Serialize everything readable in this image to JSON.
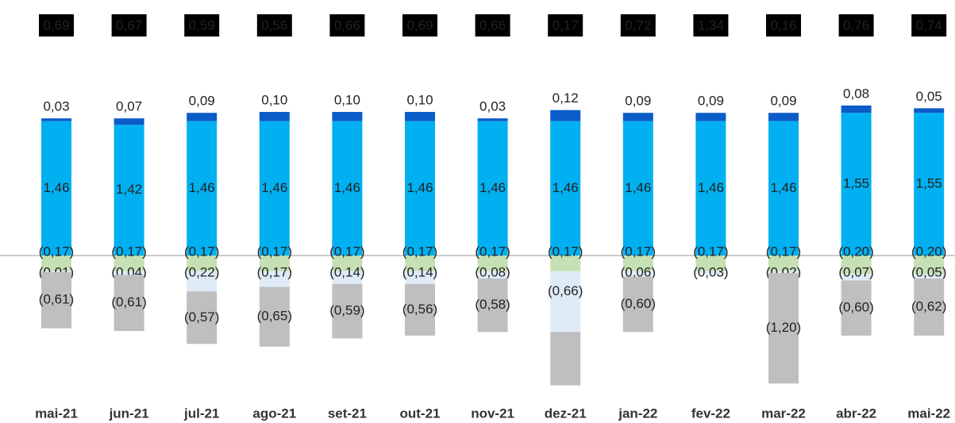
{
  "chart_data": {
    "type": "stacked-bar",
    "categories": [
      "mai-21",
      "jun-21",
      "jul-21",
      "ago-21",
      "set-21",
      "out-21",
      "nov-21",
      "dez-21",
      "jan-22",
      "fev-22",
      "mar-22",
      "abr-22",
      "mai-22"
    ],
    "series": [
      {
        "color": "#00b0f0",
        "values": [
          1.46,
          1.42,
          1.46,
          1.46,
          1.46,
          1.46,
          1.46,
          1.46,
          1.46,
          1.46,
          1.46,
          1.55,
          1.55
        ],
        "value_labels": [
          "1,46",
          "1,42",
          "1,46",
          "1,46",
          "1,46",
          "1,46",
          "1,46",
          "1,46",
          "1,46",
          "1,46",
          "1,46",
          "1,55",
          "1,55"
        ]
      },
      {
        "color": "#0b5cc8",
        "values": [
          0.03,
          0.07,
          0.09,
          0.1,
          0.1,
          0.1,
          0.03,
          0.12,
          0.09,
          0.09,
          0.09,
          0.08,
          0.05
        ],
        "value_labels": [
          "0,03",
          "0,07",
          "0,09",
          "0,10",
          "0,10",
          "0,10",
          "0,03",
          "0,12",
          "0,09",
          "0,09",
          "0,09",
          "0,08",
          "0,05"
        ]
      },
      {
        "color": "#c5e0b4",
        "values": [
          -0.17,
          -0.17,
          -0.17,
          -0.17,
          -0.17,
          -0.17,
          -0.17,
          -0.17,
          -0.17,
          -0.17,
          -0.17,
          -0.2,
          -0.2
        ],
        "value_labels": [
          "(0,17)",
          "(0,17)",
          "(0,17)",
          "(0,17)",
          "(0,17)",
          "(0,17)",
          "(0,17)",
          "(0,17)",
          "(0,17)",
          "(0,17)",
          "(0,17)",
          "(0,20)",
          "(0,20)"
        ]
      },
      {
        "color": "#deebf7",
        "values": [
          -0.01,
          -0.04,
          -0.22,
          -0.17,
          -0.14,
          -0.14,
          -0.08,
          -0.66,
          -0.06,
          -0.03,
          -0.02,
          -0.07,
          -0.05
        ],
        "value_labels": [
          "(0,01)",
          "(0,04)",
          "(0,22)",
          "(0,17)",
          "(0,14)",
          "(0,14)",
          "(0,08)",
          "(0,66)",
          "(0,06)",
          "(0,03)",
          "(0,02)",
          "(0,07)",
          "(0,05)"
        ]
      },
      {
        "color": "#bfbfbf",
        "values": [
          -0.61,
          -0.61,
          -0.57,
          -0.65,
          -0.59,
          -0.56,
          -0.58,
          -0.58,
          -0.6,
          null,
          -1.2,
          -0.6,
          -0.62
        ],
        "value_labels": [
          "(0,61)",
          "(0,61)",
          "(0,57)",
          "(0,65)",
          "(0,59)",
          "(0,56)",
          "(0,58)",
          null,
          "(0,60)",
          null,
          "(1,20)",
          "(0,60)",
          "(0,62)"
        ]
      }
    ],
    "totals": {
      "values": [
        0.69,
        0.67,
        0.59,
        0.56,
        0.66,
        0.69,
        0.66,
        0.17,
        0.72,
        1.34,
        0.16,
        0.76,
        0.74
      ],
      "value_labels": [
        "0,69",
        "0,67",
        "0,59",
        "0,56",
        "0,66",
        "0,69",
        "0,66",
        "0,17",
        "0,72",
        "1,34",
        "0,16",
        "0,76",
        "0,74"
      ]
    }
  }
}
